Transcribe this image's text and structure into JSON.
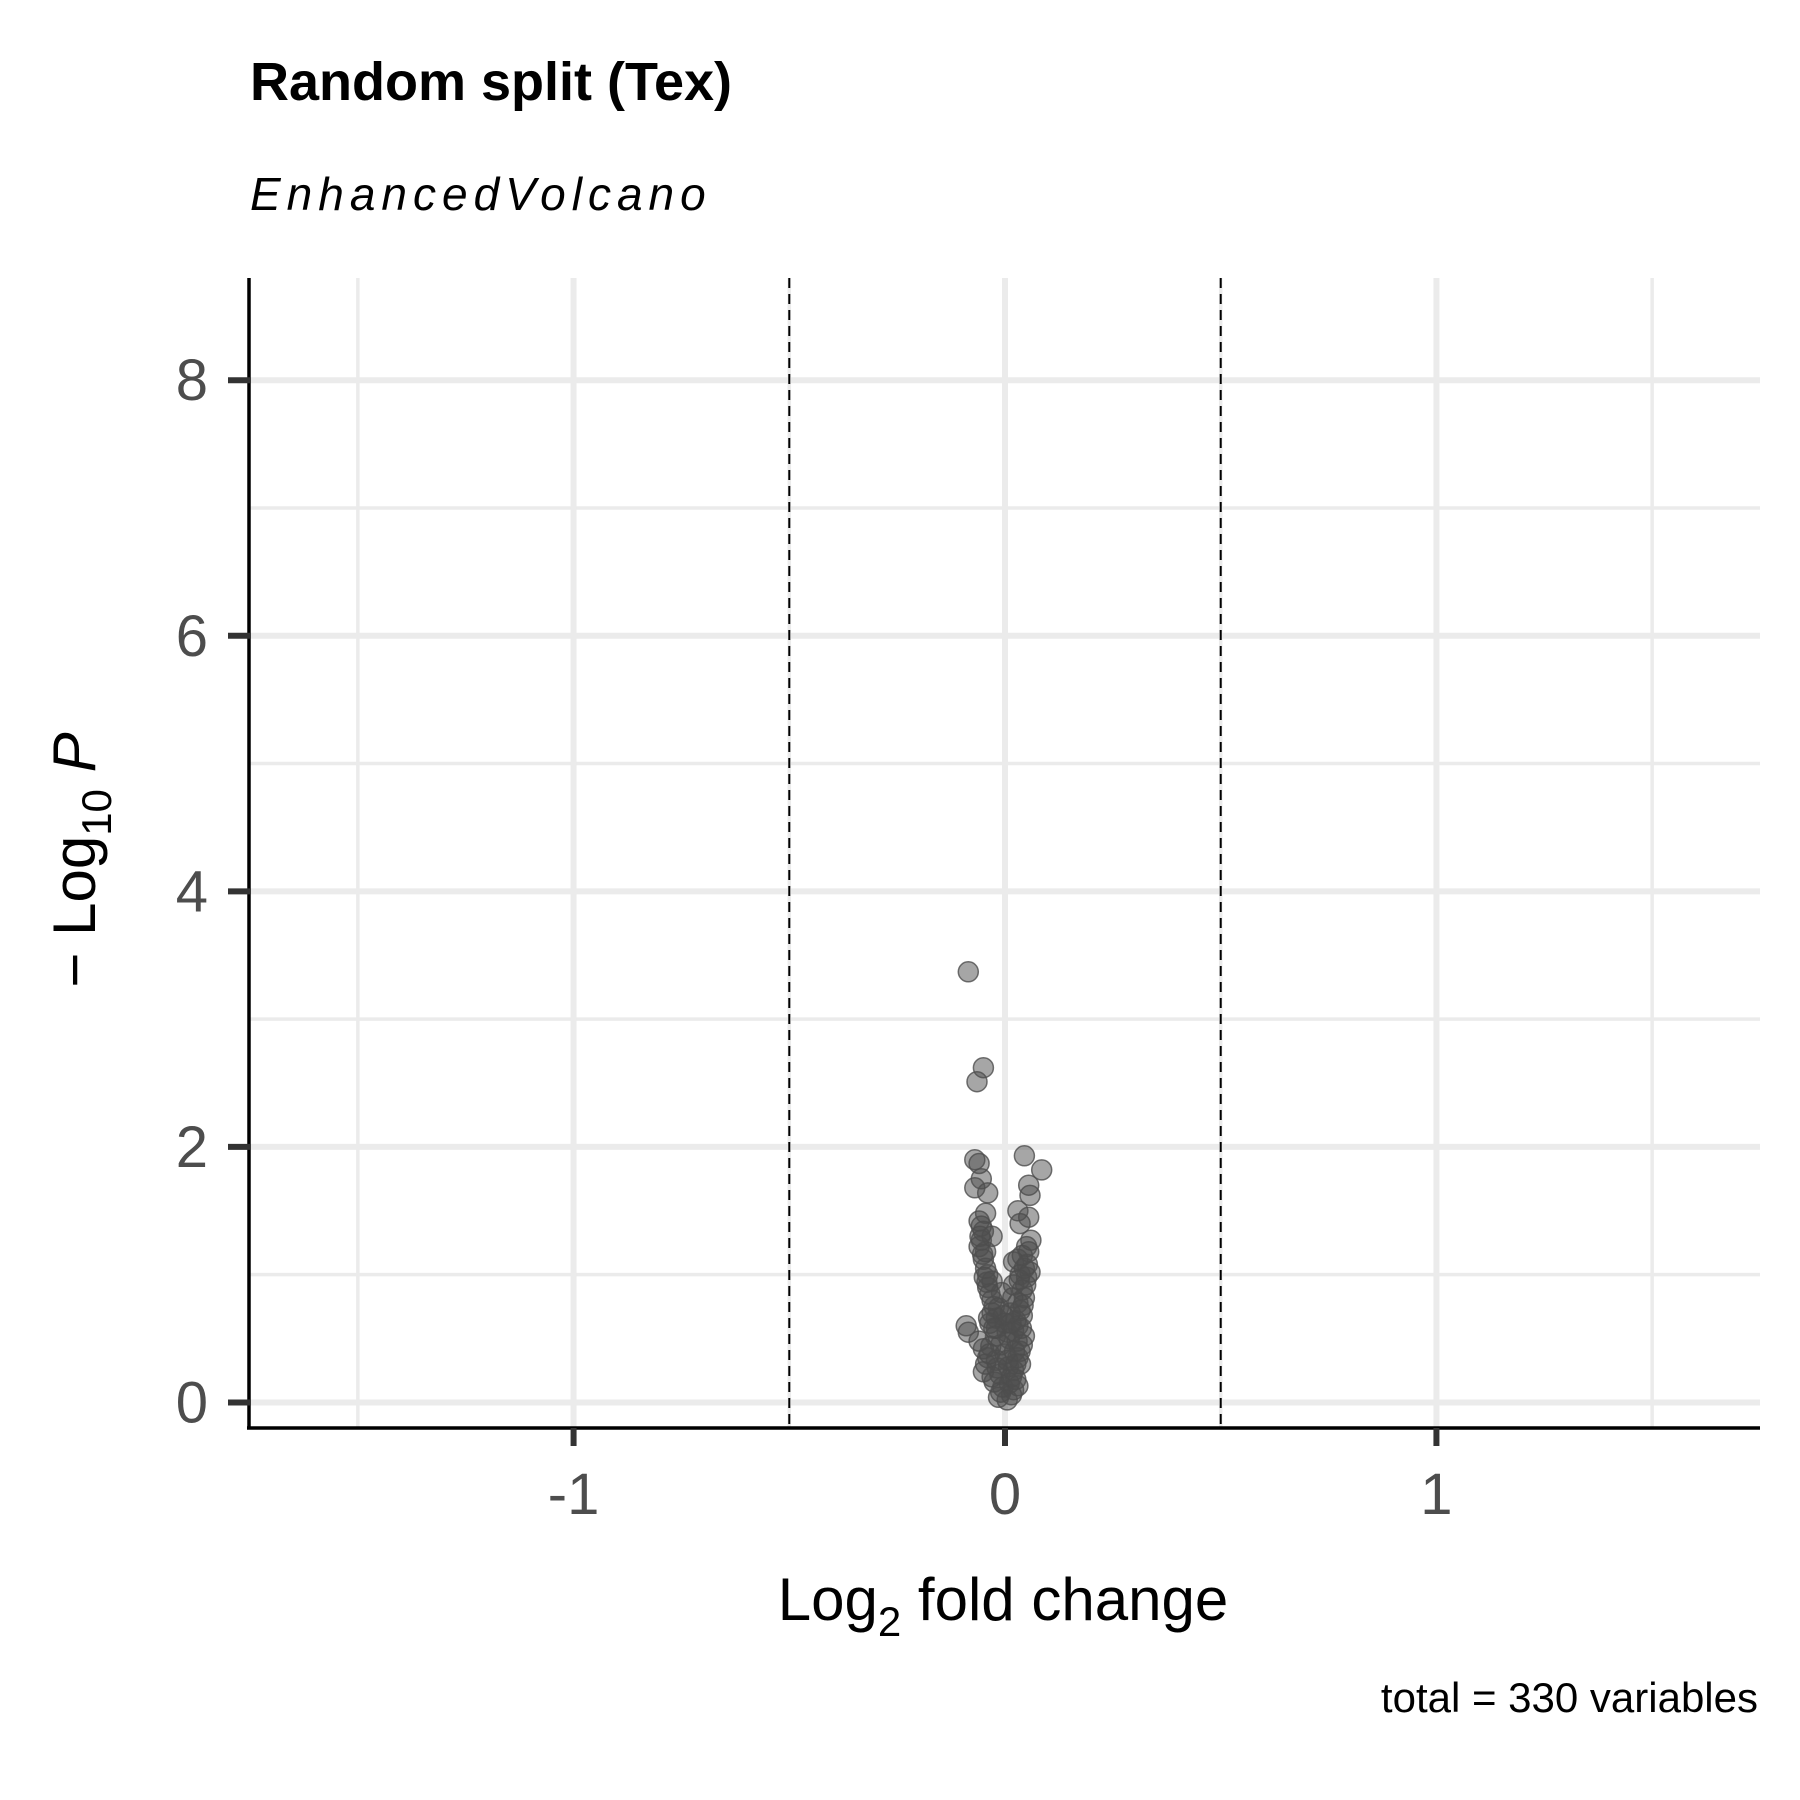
{
  "chart_data": {
    "type": "scatter",
    "title": "Random split (Tex)",
    "subtitle": "EnhancedVolcano",
    "xlabel_main": "Log",
    "xlabel_sub": "2",
    "xlabel_rest": " fold change",
    "ylabel_prefix": "− Log",
    "ylabel_sub": "10",
    "ylabel_var": "P",
    "caption": "total = 330 variables",
    "xlim": [
      -1.75,
      1.75
    ],
    "ylim": [
      -0.2,
      8.8
    ],
    "x_ticks": [
      {
        "value": -1,
        "label": "-1"
      },
      {
        "value": 0,
        "label": "0"
      },
      {
        "value": 1,
        "label": "1"
      }
    ],
    "y_ticks": [
      {
        "value": 0,
        "label": "0"
      },
      {
        "value": 2,
        "label": "2"
      },
      {
        "value": 4,
        "label": "4"
      },
      {
        "value": 6,
        "label": "6"
      },
      {
        "value": 8,
        "label": "8"
      }
    ],
    "x_minor": [
      -1.5,
      -0.5,
      0.5,
      1.5
    ],
    "y_minor": [
      1,
      3,
      5,
      7
    ],
    "fc_cutoff": [
      -0.5,
      0.5
    ],
    "grid": true,
    "legend": "none",
    "point_color": "#4d4d4d",
    "points": [
      [
        -0.085,
        3.37
      ],
      [
        -0.05,
        2.62
      ],
      [
        -0.065,
        2.51
      ],
      [
        0.045,
        1.93
      ],
      [
        0.085,
        1.82
      ],
      [
        -0.07,
        1.9
      ],
      [
        -0.06,
        1.87
      ],
      [
        -0.055,
        1.75
      ],
      [
        -0.07,
        1.68
      ],
      [
        -0.04,
        1.64
      ],
      [
        0.055,
        1.7
      ],
      [
        0.058,
        1.62
      ],
      [
        0.03,
        1.5
      ],
      [
        0.055,
        1.45
      ],
      [
        0.035,
        1.4
      ],
      [
        -0.045,
        1.48
      ],
      [
        -0.06,
        1.42
      ],
      [
        -0.055,
        1.38
      ],
      [
        -0.05,
        1.34
      ],
      [
        -0.03,
        1.3
      ],
      [
        0.06,
        1.27
      ],
      [
        0.05,
        1.22
      ],
      [
        -0.055,
        1.27
      ],
      [
        -0.06,
        1.22
      ],
      [
        -0.045,
        1.18
      ],
      [
        0.04,
        1.15
      ],
      [
        0.03,
        1.12
      ],
      [
        0.055,
        1.18
      ],
      [
        0.02,
        1.1
      ],
      [
        0.045,
        1.05
      ],
      [
        -0.05,
        1.12
      ],
      [
        -0.045,
        1.05
      ],
      [
        -0.04,
        1.0
      ],
      [
        0.035,
        1.0
      ],
      [
        0.05,
        0.98
      ],
      [
        -0.03,
        0.95
      ],
      [
        0.02,
        0.92
      ],
      [
        -0.04,
        0.9
      ],
      [
        0.04,
        0.88
      ],
      [
        -0.035,
        0.85
      ],
      [
        0.045,
        0.82
      ],
      [
        -0.03,
        0.8
      ],
      [
        0.03,
        0.78
      ],
      [
        -0.025,
        0.75
      ],
      [
        0.035,
        0.72
      ],
      [
        -0.03,
        0.7
      ],
      [
        0.04,
        0.68
      ],
      [
        -0.02,
        0.66
      ],
      [
        0.025,
        0.64
      ],
      [
        -0.035,
        0.62
      ],
      [
        0.03,
        0.6
      ],
      [
        -0.02,
        0.58
      ],
      [
        0.02,
        0.56
      ],
      [
        -0.085,
        0.55
      ],
      [
        -0.09,
        0.6
      ],
      [
        -0.06,
        0.48
      ],
      [
        -0.05,
        0.42
      ],
      [
        -0.045,
        0.3
      ],
      [
        -0.05,
        0.24
      ],
      [
        -0.04,
        0.35
      ],
      [
        0.045,
        0.52
      ],
      [
        0.04,
        0.45
      ],
      [
        0.035,
        0.4
      ],
      [
        0.03,
        0.35
      ],
      [
        0.025,
        0.3
      ],
      [
        0.02,
        0.25
      ],
      [
        0.015,
        0.2
      ],
      [
        0.01,
        0.15
      ],
      [
        0.02,
        0.1
      ],
      [
        0.015,
        0.06
      ],
      [
        -0.01,
        0.08
      ],
      [
        -0.015,
        0.04
      ],
      [
        0.005,
        0.02
      ],
      [
        -0.005,
        0.12
      ],
      [
        0.01,
        0.5
      ],
      [
        -0.01,
        0.45
      ],
      [
        0.0,
        0.38
      ],
      [
        -0.02,
        0.33
      ],
      [
        0.008,
        0.28
      ],
      [
        -0.012,
        0.22
      ],
      [
        0.025,
        0.18
      ],
      [
        -0.025,
        0.16
      ],
      [
        0.03,
        0.13
      ],
      [
        -0.03,
        0.2
      ],
      [
        0.012,
        0.7
      ],
      [
        -0.015,
        0.74
      ],
      [
        0.0,
        0.62
      ],
      [
        0.005,
        0.55
      ],
      [
        -0.008,
        0.86
      ],
      [
        0.018,
        0.82
      ],
      [
        -0.022,
        0.52
      ],
      [
        0.028,
        0.48
      ],
      [
        0.038,
        0.58
      ],
      [
        -0.038,
        0.66
      ],
      [
        0.042,
        0.76
      ],
      [
        -0.042,
        0.94
      ],
      [
        0.048,
        0.92
      ],
      [
        -0.048,
        0.98
      ],
      [
        0.052,
        1.08
      ],
      [
        -0.052,
        1.16
      ],
      [
        0.058,
        1.02
      ],
      [
        -0.058,
        1.3
      ],
      [
        0.033,
        0.96
      ],
      [
        -0.033,
        0.44
      ],
      [
        0.022,
        0.4
      ],
      [
        -0.018,
        0.27
      ],
      [
        0.006,
        0.33
      ],
      [
        -0.004,
        0.68
      ],
      [
        0.014,
        0.62
      ],
      [
        -0.026,
        0.58
      ],
      [
        0.036,
        0.3
      ],
      [
        -0.036,
        0.38
      ]
    ]
  }
}
